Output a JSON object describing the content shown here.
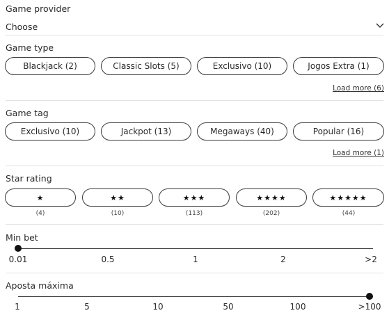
{
  "game_provider": {
    "title": "Game provider",
    "value": "Choose",
    "icon": "chevron-down-icon"
  },
  "game_type": {
    "title": "Game type",
    "options": [
      "Blackjack (2)",
      "Classic Slots (5)",
      "Exclusivo (10)",
      "Jogos Extra (1)"
    ],
    "load_more": "Load more (6)"
  },
  "game_tag": {
    "title": "Game tag",
    "options": [
      "Exclusivo (10)",
      "Jackpot (13)",
      "Megaways (40)",
      "Popular (16)"
    ],
    "load_more": "Load more (1)"
  },
  "star_rating": {
    "title": "Star rating",
    "options": [
      {
        "stars": "★",
        "count": "(4)"
      },
      {
        "stars": "★★",
        "count": "(10)"
      },
      {
        "stars": "★★★",
        "count": "(113)"
      },
      {
        "stars": "★★★★",
        "count": "(202)"
      },
      {
        "stars": "★★★★★",
        "count": "(44)"
      }
    ]
  },
  "min_bet": {
    "title": "Min bet",
    "ticks": [
      "0.01",
      "0.5",
      "1",
      "2",
      ">2"
    ],
    "selected": "0.01"
  },
  "max_bet": {
    "title": "Aposta máxima",
    "ticks": [
      "1",
      "5",
      "10",
      "50",
      "100",
      ">100"
    ],
    "selected": ">100"
  }
}
